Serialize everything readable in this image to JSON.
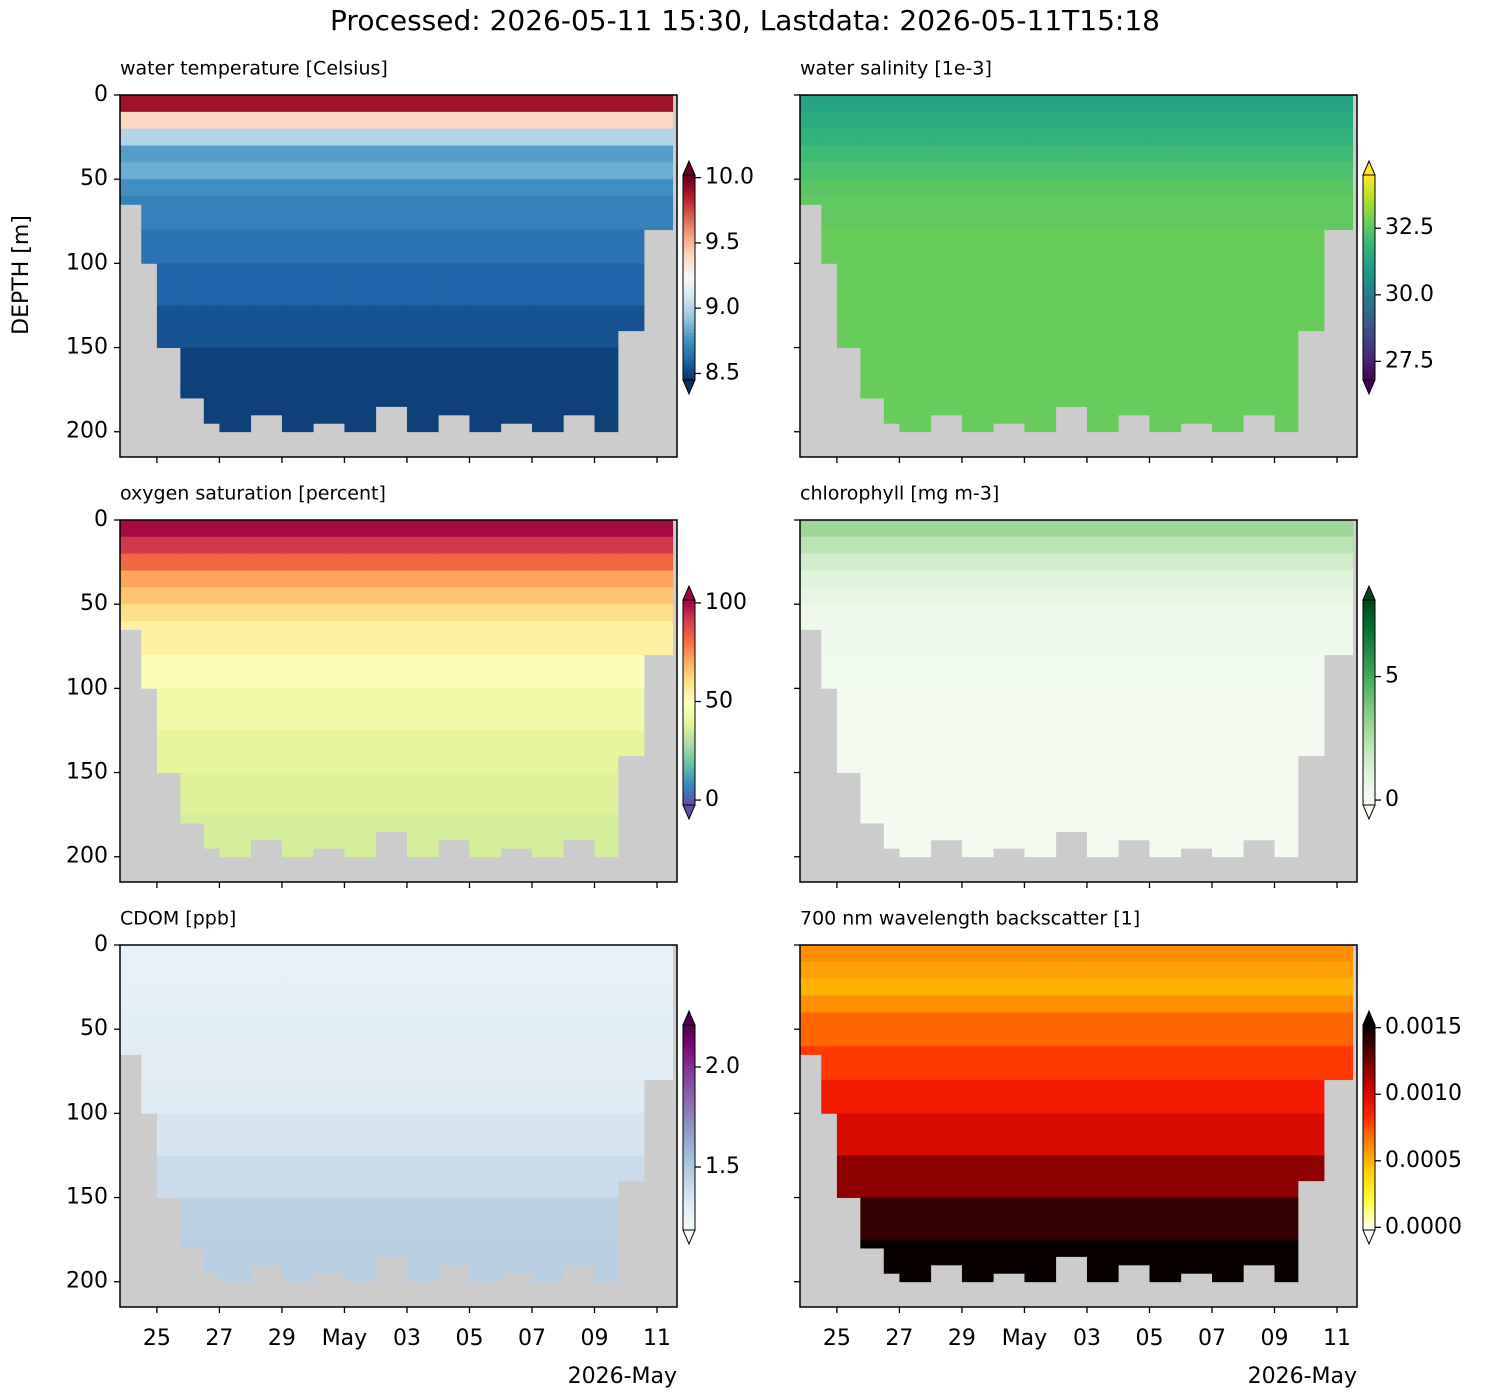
{
  "title": "Processed: 2026-05-11 15:30, Lastdata: 2026-05-11T15:18",
  "chart_data": [
    {
      "type": "heatmap",
      "title": "water temperature [Celsius]",
      "ylabel": "DEPTH [m]",
      "x": [
        "2026-04-23T20:00",
        "2026-04-24T12:00",
        "2026-04-25T00:00",
        "2026-04-25T18:00",
        "2026-04-26T12:00",
        "2026-04-27T00:00",
        "2026-04-28T00:00",
        "2026-04-29T00:00",
        "2026-04-30T00:00",
        "2026-05-01T00:00",
        "2026-05-02T00:00",
        "2026-05-03T00:00",
        "2026-05-04T00:00",
        "2026-05-05T00:00",
        "2026-05-06T00:00",
        "2026-05-07T00:00",
        "2026-05-08T00:00",
        "2026-05-09T00:00",
        "2026-05-09T18:00",
        "2026-05-10T14:00",
        "2026-05-11T12:00"
      ],
      "max_depth": [
        65,
        100,
        150,
        180,
        195,
        200,
        190,
        200,
        195,
        200,
        185,
        200,
        190,
        200,
        195,
        200,
        190,
        200,
        140,
        80
      ],
      "depths": [
        0,
        10,
        20,
        30,
        40,
        50,
        60,
        80,
        100,
        125,
        150,
        175,
        200
      ],
      "profile": [
        9.9,
        9.4,
        9.0,
        8.8,
        8.85,
        8.75,
        8.7,
        8.65,
        8.6,
        8.55,
        8.5,
        8.5
      ],
      "xlim": [
        "2026-04-23T19:40",
        "2026-05-11T15:20"
      ],
      "ylim": [
        215,
        0
      ],
      "yticks": [
        0,
        50,
        100,
        150,
        200
      ],
      "xticks": [
        "2026-04-25",
        "2026-04-27",
        "2026-04-29",
        "2026-05-01",
        "2026-05-03",
        "2026-05-05",
        "2026-05-07",
        "2026-05-09",
        "2026-05-11"
      ],
      "clim": [
        8.45,
        10.02
      ],
      "cticks": [
        {
          "value": 10.0,
          "label": "10.0"
        },
        9.5,
        {
          "value": 9.0,
          "label": "9.0"
        },
        8.5
      ],
      "colors": [
        "#053061",
        "#2166ac",
        "#4393c3",
        "#92c5de",
        "#d1e5f0",
        "#f7f7f7",
        "#fddbc7",
        "#f4a582",
        "#d6604d",
        "#b2182b",
        "#67001f"
      ]
    },
    {
      "type": "heatmap",
      "title": "water salinity [1e-3]",
      "x": [
        "2026-04-23T20:00",
        "2026-04-24T12:00",
        "2026-04-25T00:00",
        "2026-04-25T18:00",
        "2026-04-26T12:00",
        "2026-04-27T00:00",
        "2026-04-28T00:00",
        "2026-04-29T00:00",
        "2026-04-30T00:00",
        "2026-05-01T00:00",
        "2026-05-02T00:00",
        "2026-05-03T00:00",
        "2026-05-04T00:00",
        "2026-05-05T00:00",
        "2026-05-06T00:00",
        "2026-05-07T00:00",
        "2026-05-08T00:00",
        "2026-05-09T00:00",
        "2026-05-09T18:00",
        "2026-05-10T14:00",
        "2026-05-11T12:00"
      ],
      "max_depth": [
        65,
        100,
        150,
        180,
        195,
        200,
        190,
        200,
        195,
        200,
        185,
        200,
        190,
        200,
        195,
        200,
        190,
        200,
        140,
        80
      ],
      "depths": [
        0,
        10,
        20,
        30,
        40,
        50,
        60,
        80,
        100,
        125,
        150,
        175,
        200
      ],
      "profile": [
        31.3,
        31.5,
        31.8,
        32.1,
        32.3,
        32.5,
        32.6,
        32.7,
        32.7,
        32.7,
        32.7,
        32.7
      ],
      "xlim": [
        "2026-04-23T19:40",
        "2026-05-11T15:20"
      ],
      "ylim": [
        215,
        0
      ],
      "yticks": [
        0,
        50,
        100,
        150,
        200
      ],
      "xticks": [
        "2026-04-25",
        "2026-04-27",
        "2026-04-29",
        "2026-05-01",
        "2026-05-03",
        "2026-05-05",
        "2026-05-07",
        "2026-05-09",
        "2026-05-11"
      ],
      "clim": [
        26.8,
        34.5
      ],
      "cticks": [
        32.5,
        {
          "value": 30.0,
          "label": "30.0"
        },
        27.5
      ],
      "colors": [
        "#440154",
        "#482878",
        "#3e4989",
        "#31688e",
        "#26828e",
        "#1f9e89",
        "#35b779",
        "#6ece58",
        "#b5de2b",
        "#fde725"
      ]
    },
    {
      "type": "heatmap",
      "title": "oxygen saturation [percent]",
      "x": [
        "2026-04-23T20:00",
        "2026-04-24T12:00",
        "2026-04-25T00:00",
        "2026-04-25T18:00",
        "2026-04-26T12:00",
        "2026-04-27T00:00",
        "2026-04-28T00:00",
        "2026-04-29T00:00",
        "2026-04-30T00:00",
        "2026-05-01T00:00",
        "2026-05-02T00:00",
        "2026-05-03T00:00",
        "2026-05-04T00:00",
        "2026-05-05T00:00",
        "2026-05-06T00:00",
        "2026-05-07T00:00",
        "2026-05-08T00:00",
        "2026-05-09T00:00",
        "2026-05-09T18:00",
        "2026-05-10T14:00",
        "2026-05-11T12:00"
      ],
      "max_depth": [
        65,
        100,
        150,
        180,
        195,
        200,
        190,
        200,
        195,
        200,
        185,
        200,
        190,
        200,
        195,
        200,
        190,
        200,
        140,
        80
      ],
      "depths": [
        0,
        10,
        20,
        30,
        40,
        50,
        60,
        80,
        100,
        125,
        150,
        175,
        200
      ],
      "profile": [
        100,
        92,
        82,
        72,
        66,
        60,
        55,
        48,
        43,
        40,
        38,
        36
      ],
      "xlim": [
        "2026-04-23T19:40",
        "2026-05-11T15:20"
      ],
      "ylim": [
        215,
        0
      ],
      "yticks": [
        0,
        50,
        100,
        150,
        200
      ],
      "xticks": [
        "2026-04-25",
        "2026-04-27",
        "2026-04-29",
        "2026-05-01",
        "2026-05-03",
        "2026-05-05",
        "2026-05-07",
        "2026-05-09",
        "2026-05-11"
      ],
      "clim": [
        -2.5,
        101.5
      ],
      "cticks": [
        100,
        50,
        0
      ],
      "colors": [
        "#5e4fa2",
        "#3288bd",
        "#66c2a5",
        "#abdda4",
        "#e6f598",
        "#ffffbf",
        "#fee08b",
        "#fdae61",
        "#f46d43",
        "#d53e4f",
        "#9e0142"
      ]
    },
    {
      "type": "heatmap",
      "title": "chlorophyll [mg m-3]",
      "x": [
        "2026-04-23T20:00",
        "2026-04-24T12:00",
        "2026-04-25T00:00",
        "2026-04-25T18:00",
        "2026-04-26T12:00",
        "2026-04-27T00:00",
        "2026-04-28T00:00",
        "2026-04-29T00:00",
        "2026-04-30T00:00",
        "2026-05-01T00:00",
        "2026-05-02T00:00",
        "2026-05-03T00:00",
        "2026-05-04T00:00",
        "2026-05-05T00:00",
        "2026-05-06T00:00",
        "2026-05-07T00:00",
        "2026-05-08T00:00",
        "2026-05-09T00:00",
        "2026-05-09T18:00",
        "2026-05-10T14:00",
        "2026-05-11T12:00"
      ],
      "max_depth": [
        65,
        100,
        150,
        180,
        195,
        200,
        190,
        200,
        195,
        200,
        185,
        200,
        190,
        200,
        195,
        200,
        190,
        200,
        140,
        80
      ],
      "depths": [
        0,
        10,
        20,
        30,
        40,
        50,
        60,
        80,
        100,
        125,
        150,
        175,
        200
      ],
      "profile": [
        3,
        2.2,
        1.5,
        1.0,
        0.7,
        0.4,
        0.25,
        0.15,
        0.1,
        0.08,
        0.05,
        0.05
      ],
      "xlim": [
        "2026-04-23T19:40",
        "2026-05-11T15:20"
      ],
      "ylim": [
        215,
        0
      ],
      "yticks": [
        0,
        50,
        100,
        150,
        200
      ],
      "xticks": [
        "2026-04-25",
        "2026-04-27",
        "2026-04-29",
        "2026-05-01",
        "2026-05-03",
        "2026-05-05",
        "2026-05-07",
        "2026-05-09",
        "2026-05-11"
      ],
      "clim": [
        -0.2,
        8.1
      ],
      "cticks": [
        5,
        0
      ],
      "colors": [
        "#f7fcf5",
        "#e5f5e0",
        "#c7e9c0",
        "#a1d99b",
        "#74c476",
        "#41ab5d",
        "#238b45",
        "#006d2c",
        "#00441b"
      ]
    },
    {
      "type": "heatmap",
      "title": "CDOM [ppb]",
      "x_offset_label": "2026-May",
      "x": [
        "2026-04-23T20:00",
        "2026-04-24T12:00",
        "2026-04-25T00:00",
        "2026-04-25T18:00",
        "2026-04-26T12:00",
        "2026-04-27T00:00",
        "2026-04-28T00:00",
        "2026-04-29T00:00",
        "2026-04-30T00:00",
        "2026-05-01T00:00",
        "2026-05-02T00:00",
        "2026-05-03T00:00",
        "2026-05-04T00:00",
        "2026-05-05T00:00",
        "2026-05-06T00:00",
        "2026-05-07T00:00",
        "2026-05-08T00:00",
        "2026-05-09T00:00",
        "2026-05-09T18:00",
        "2026-05-10T14:00",
        "2026-05-11T12:00"
      ],
      "max_depth": [
        65,
        100,
        150,
        180,
        195,
        200,
        190,
        200,
        195,
        200,
        185,
        200,
        190,
        200,
        195,
        200,
        190,
        200,
        140,
        80
      ],
      "depths": [
        0,
        10,
        20,
        30,
        40,
        50,
        60,
        80,
        100,
        125,
        150,
        175,
        200
      ],
      "profile": [
        1.27,
        1.27,
        1.28,
        1.29,
        1.3,
        1.3,
        1.31,
        1.32,
        1.35,
        1.4,
        1.45,
        1.47
      ],
      "xlim": [
        "2026-04-23T19:40",
        "2026-05-11T15:20"
      ],
      "ylim": [
        215,
        0
      ],
      "yticks": [
        0,
        50,
        100,
        150,
        200
      ],
      "xticks": [
        {
          "value": "2026-04-25",
          "label": "25"
        },
        {
          "value": "2026-04-27",
          "label": "27"
        },
        {
          "value": "2026-04-29",
          "label": "29"
        },
        {
          "value": "2026-05-01",
          "label": "May"
        },
        {
          "value": "2026-05-03",
          "label": "03"
        },
        {
          "value": "2026-05-05",
          "label": "05"
        },
        {
          "value": "2026-05-07",
          "label": "07"
        },
        {
          "value": "2026-05-09",
          "label": "09"
        },
        {
          "value": "2026-05-11",
          "label": "11"
        }
      ],
      "clim": [
        1.185,
        2.21
      ],
      "cticks": [
        {
          "value": 2.0,
          "label": "2.0"
        },
        1.5
      ],
      "colors": [
        "#f7fcfd",
        "#e0ecf4",
        "#bfd3e6",
        "#9ebcda",
        "#8c96c6",
        "#8c6bb1",
        "#88419d",
        "#810f7c",
        "#4d004b"
      ]
    },
    {
      "type": "heatmap",
      "title": "700 nm wavelength backscatter [1]",
      "x_offset_label": "2026-May",
      "x": [
        "2026-04-23T20:00",
        "2026-04-24T12:00",
        "2026-04-25T00:00",
        "2026-04-25T18:00",
        "2026-04-26T12:00",
        "2026-04-27T00:00",
        "2026-04-28T00:00",
        "2026-04-29T00:00",
        "2026-04-30T00:00",
        "2026-05-01T00:00",
        "2026-05-02T00:00",
        "2026-05-03T00:00",
        "2026-05-04T00:00",
        "2026-05-05T00:00",
        "2026-05-06T00:00",
        "2026-05-07T00:00",
        "2026-05-08T00:00",
        "2026-05-09T00:00",
        "2026-05-09T18:00",
        "2026-05-10T14:00",
        "2026-05-11T12:00"
      ],
      "max_depth": [
        65,
        100,
        150,
        180,
        195,
        200,
        190,
        200,
        195,
        200,
        185,
        200,
        190,
        200,
        195,
        200,
        190,
        200,
        140,
        80
      ],
      "depths": [
        0,
        10,
        20,
        30,
        40,
        50,
        60,
        80,
        100,
        125,
        150,
        175,
        200
      ],
      "profile": [
        0.0006,
        0.00055,
        0.0005,
        0.0006,
        0.0007,
        0.0007,
        0.0008,
        0.0009,
        0.001,
        0.0012,
        0.0014,
        0.0015
      ],
      "xlim": [
        "2026-04-23T19:40",
        "2026-05-11T15:20"
      ],
      "ylim": [
        215,
        0
      ],
      "yticks": [
        0,
        50,
        100,
        150,
        200
      ],
      "xticks": [
        {
          "value": "2026-04-25",
          "label": "25"
        },
        {
          "value": "2026-04-27",
          "label": "27"
        },
        {
          "value": "2026-04-29",
          "label": "29"
        },
        {
          "value": "2026-05-01",
          "label": "May"
        },
        {
          "value": "2026-05-03",
          "label": "03"
        },
        {
          "value": "2026-05-05",
          "label": "05"
        },
        {
          "value": "2026-05-07",
          "label": "07"
        },
        {
          "value": "2026-05-09",
          "label": "09"
        },
        {
          "value": "2026-05-11",
          "label": "11"
        }
      ],
      "clim": [
        -2e-05,
        0.00152
      ],
      "cticks": [
        0.0015,
        {
          "value": 0.001,
          "label": "0.0010"
        },
        0.0005,
        {
          "value": 0,
          "label": "0.0000"
        }
      ],
      "colors": [
        "#ffffff",
        "#ffff40",
        "#ffd000",
        "#ff8000",
        "#ff2000",
        "#c00000",
        "#600000",
        "#000000"
      ]
    }
  ]
}
